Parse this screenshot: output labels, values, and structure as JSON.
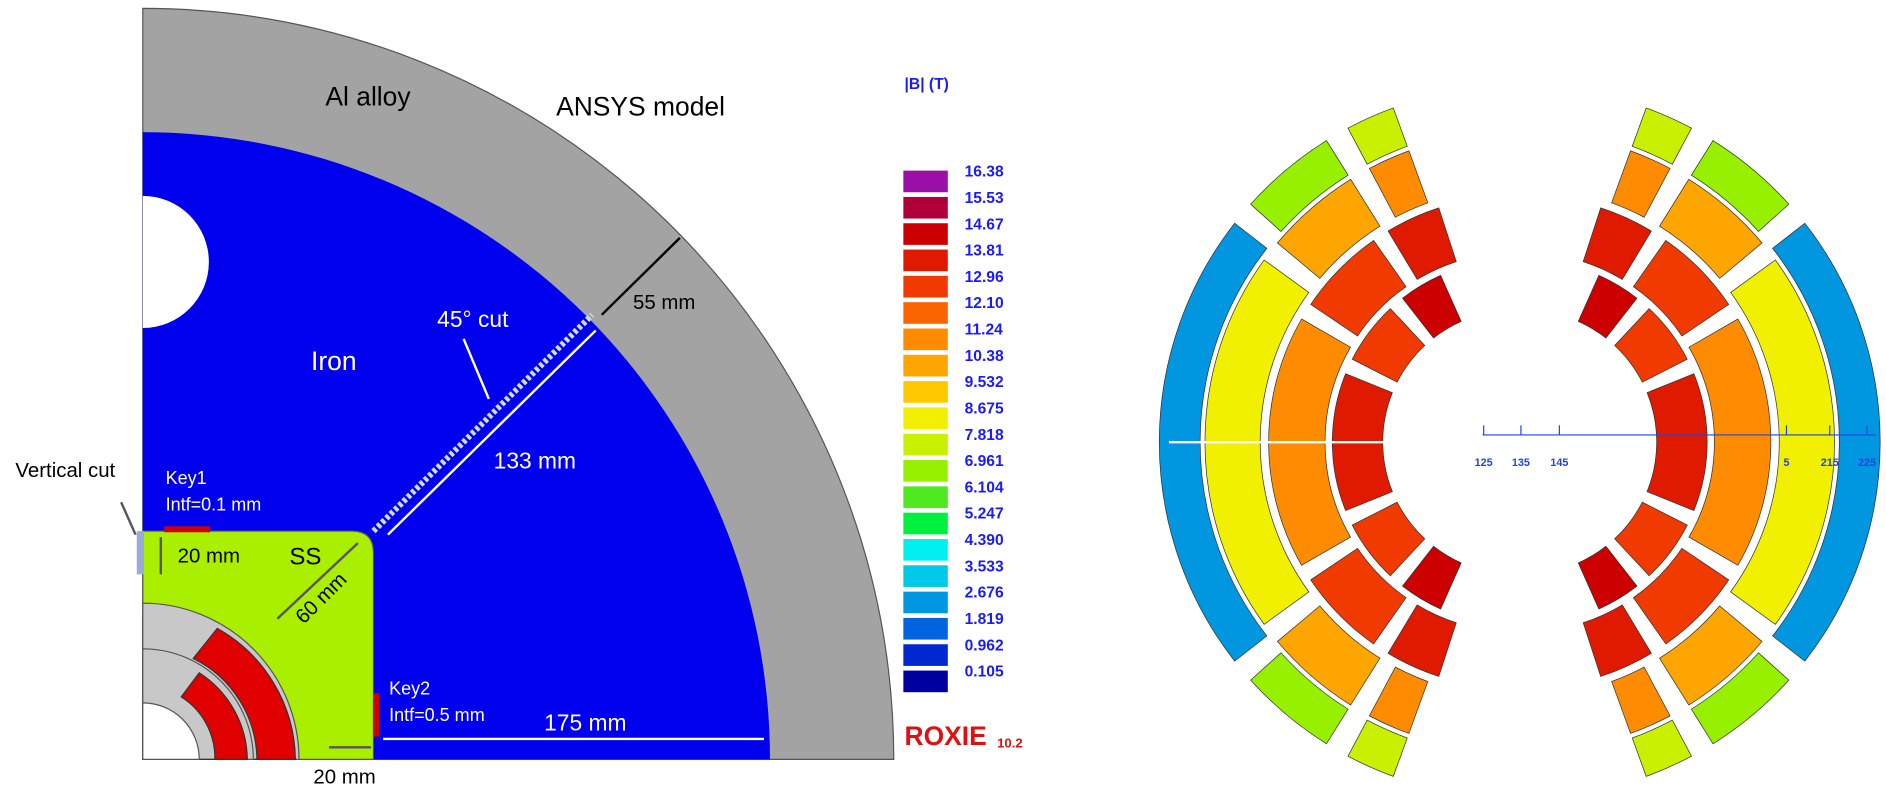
{
  "ansys": {
    "title": "ANSYS model",
    "labels": {
      "al": "Al alloy",
      "iron": "Iron",
      "cut45": "45° cut",
      "d55": "55 mm",
      "d133": "133 mm",
      "vcut": "Vertical cut",
      "key1": "Key1",
      "intf1": "Intf=0.1 mm",
      "d20a": "20 mm",
      "ss": "SS",
      "d60": "60 mm",
      "key2": "Key2",
      "intf2": "Intf=0.5 mm",
      "d175": "175 mm",
      "d20b": "20 mm"
    }
  },
  "colorbar": {
    "title": "|B|  (T)",
    "levels": [
      {
        "label": "16.38",
        "color": "#9b0fa8"
      },
      {
        "label": "15.53",
        "color": "#b0003a"
      },
      {
        "label": "14.67",
        "color": "#cc0000"
      },
      {
        "label": "13.81",
        "color": "#e01a00"
      },
      {
        "label": "12.96",
        "color": "#f03a00"
      },
      {
        "label": "12.10",
        "color": "#fa6400"
      },
      {
        "label": "11.24",
        "color": "#ff8c00"
      },
      {
        "label": "10.38",
        "color": "#ffa500"
      },
      {
        "label": "9.532",
        "color": "#ffc800"
      },
      {
        "label": "8.675",
        "color": "#f0f000"
      },
      {
        "label": "7.818",
        "color": "#c8f000"
      },
      {
        "label": "6.961",
        "color": "#96f000"
      },
      {
        "label": "6.104",
        "color": "#50e820"
      },
      {
        "label": "5.247",
        "color": "#00f040"
      },
      {
        "label": "4.390",
        "color": "#00f0f0"
      },
      {
        "label": "3.533",
        "color": "#00c8e8"
      },
      {
        "label": "2.676",
        "color": "#0096e0"
      },
      {
        "label": "1.819",
        "color": "#0064e0"
      },
      {
        "label": "0.962",
        "color": "#0028d0"
      },
      {
        "label": "0.105",
        "color": "#0000a0"
      }
    ]
  },
  "roxie": {
    "name": "ROXIE",
    "version": "10.2",
    "axis_ticks": [
      "125",
      "135",
      "145",
      "5",
      "215",
      "225"
    ]
  }
}
